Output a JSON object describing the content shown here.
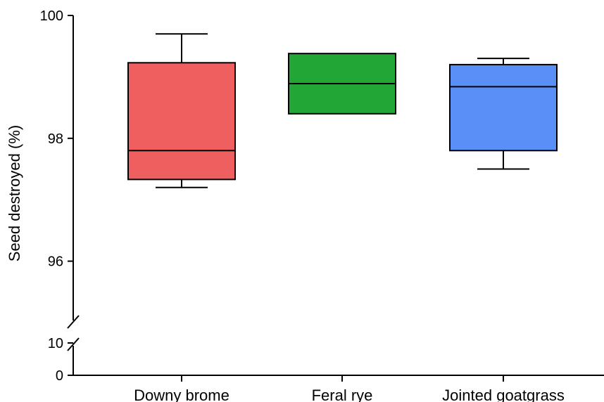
{
  "chart_data": {
    "type": "box",
    "title": "",
    "xlabel": "",
    "ylabel": "Seed destroyed (%)",
    "y_axis_break": true,
    "y_segments": [
      {
        "range": [
          95,
          100
        ],
        "ticks": [
          {
            "value": 96,
            "label": "96"
          },
          {
            "value": 98,
            "label": "98"
          },
          {
            "value": 100,
            "label": "100"
          }
        ]
      },
      {
        "range": [
          0,
          10
        ],
        "ticks": [
          {
            "value": 0,
            "label": "0"
          },
          {
            "value": 10,
            "label": "10"
          }
        ]
      }
    ],
    "categories": [
      "Downy brome",
      "Feral rye",
      "Jointed goatgrass"
    ],
    "series": [
      {
        "category": "Downy brome",
        "min": 97.2,
        "q1": 97.33,
        "median": 97.8,
        "q3": 99.23,
        "max": 99.7,
        "color": "#ef5f5f"
      },
      {
        "category": "Feral rye",
        "min": 98.4,
        "q1": 98.4,
        "median": 98.89,
        "q3": 99.38,
        "max": 99.38,
        "color": "#22a737"
      },
      {
        "category": "Jointed goatgrass",
        "min": 97.5,
        "q1": 97.8,
        "median": 98.84,
        "q3": 99.2,
        "max": 99.3,
        "color": "#5a8ff7"
      }
    ],
    "grid": false,
    "legend": "none"
  }
}
